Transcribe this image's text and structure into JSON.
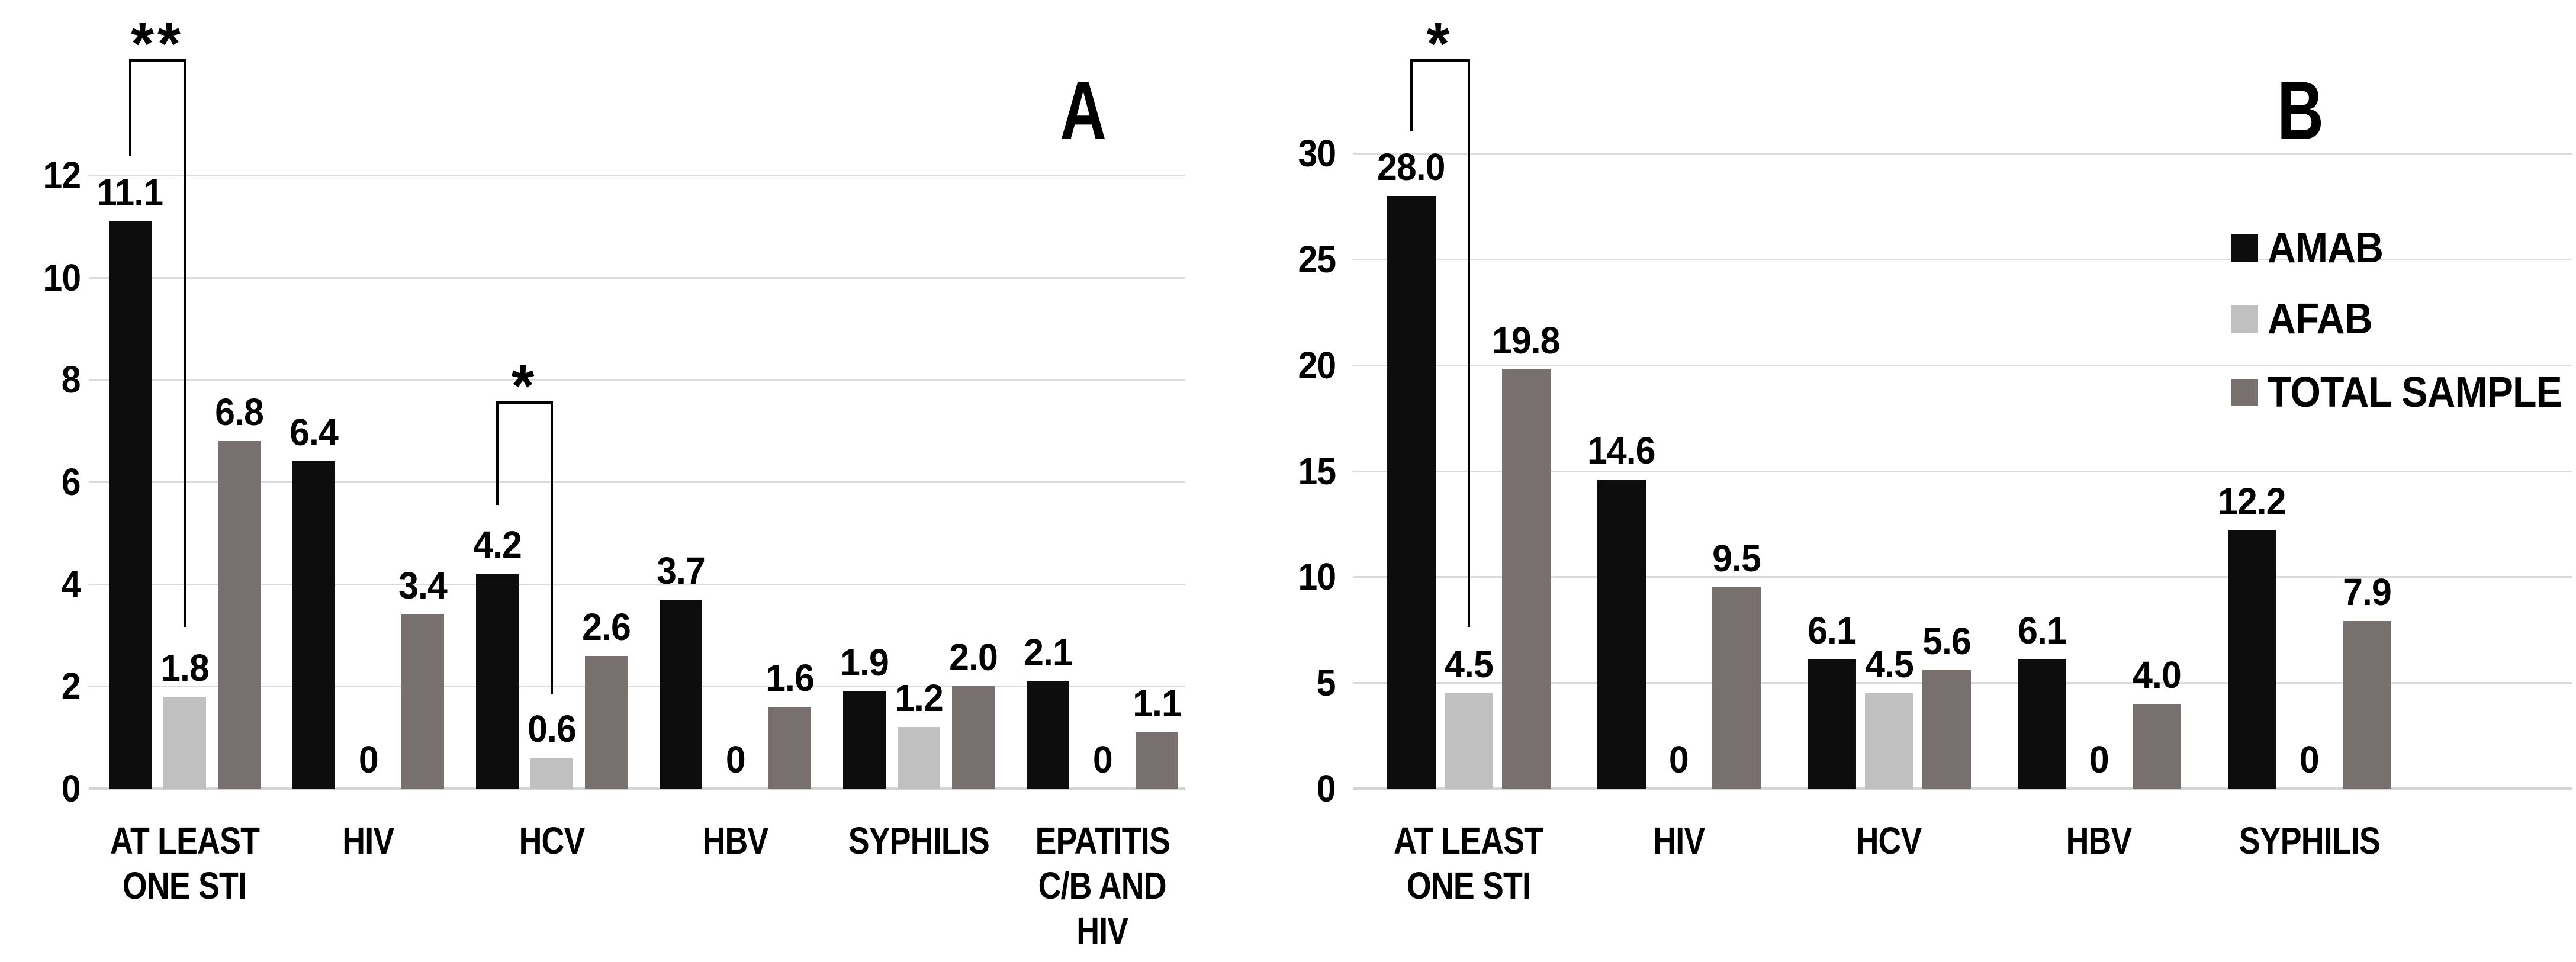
{
  "figure": {
    "background_color": "#ffffff",
    "text_color": "#000000",
    "gridline_color": "#dcdcdc",
    "axis_line_color": "#d4d4d4"
  },
  "legend": {
    "position": "right-of-chart-B",
    "items": [
      {
        "label": "AMAB",
        "color": "#0d0d0d"
      },
      {
        "label": "AFAB",
        "color": "#c0c0c0"
      },
      {
        "label": "TOTAL SAMPLE",
        "color": "#77706f"
      }
    ]
  },
  "chart_data": [
    {
      "id": "A",
      "panel_label": "A",
      "type": "bar",
      "title": "",
      "xlabel": "",
      "ylabel": "",
      "ylim": [
        0,
        12
      ],
      "yticks": [
        0,
        2,
        4,
        6,
        8,
        10,
        12
      ],
      "grid": true,
      "categories": [
        "AT LEAST ONE STI",
        "HIV",
        "HCV",
        "HBV",
        "SYPHILIS",
        "EPATITIS C/B AND HIV"
      ],
      "category_lines": [
        [
          "AT LEAST",
          "ONE STI"
        ],
        [
          "HIV"
        ],
        [
          "HCV"
        ],
        [
          "HBV"
        ],
        [
          "SYPHILIS"
        ],
        [
          "EPATITIS",
          "C/B AND",
          "HIV"
        ]
      ],
      "series": [
        {
          "name": "AMAB",
          "color": "#0d0d0d",
          "values": [
            11.1,
            6.4,
            4.2,
            3.7,
            1.9,
            2.1
          ],
          "labels": [
            "11.1",
            "6.4",
            "4.2",
            "3.7",
            "1.9",
            "2.1"
          ]
        },
        {
          "name": "AFAB",
          "color": "#c0c0c0",
          "values": [
            1.8,
            0,
            0.6,
            0,
            1.2,
            0
          ],
          "labels": [
            "1.8",
            "0",
            "0.6",
            "0",
            "1.2",
            "0"
          ]
        },
        {
          "name": "TOTAL SAMPLE",
          "color": "#77706f",
          "values": [
            6.8,
            3.4,
            2.6,
            1.6,
            2.0,
            1.1
          ],
          "labels": [
            "6.8",
            "3.4",
            "2.6",
            "1.6",
            "2.0",
            "1.1"
          ]
        }
      ],
      "annotations": [
        {
          "text": "**",
          "category": "AT LEAST ONE STI",
          "category_index": 0,
          "from_series": 0,
          "to_series": 1,
          "top_y": 100,
          "leg_end_y": [
            264,
            1059
          ]
        },
        {
          "text": "*",
          "category": "HCV",
          "category_index": 2,
          "from_series": 0,
          "to_series": 1,
          "top_y": 678,
          "leg_end_y": [
            853,
            1173
          ]
        }
      ]
    },
    {
      "id": "B",
      "panel_label": "B",
      "type": "bar",
      "title": "",
      "xlabel": "",
      "ylabel": "",
      "ylim": [
        0,
        30
      ],
      "yticks": [
        0,
        5,
        10,
        15,
        20,
        25,
        30
      ],
      "grid": true,
      "categories": [
        "AT LEAST ONE STI",
        "HIV",
        "HCV",
        "HBV",
        "SYPHILIS"
      ],
      "category_lines": [
        [
          "AT LEAST",
          "ONE STI"
        ],
        [
          "HIV"
        ],
        [
          "HCV"
        ],
        [
          "HBV"
        ],
        [
          "SYPHILIS"
        ]
      ],
      "series": [
        {
          "name": "AMAB",
          "color": "#0d0d0d",
          "values": [
            28.0,
            14.6,
            6.1,
            6.1,
            12.2
          ],
          "labels": [
            "28.0",
            "14.6",
            "6.1",
            "6.1",
            "12.2"
          ]
        },
        {
          "name": "AFAB",
          "color": "#c0c0c0",
          "values": [
            4.5,
            0,
            4.5,
            0,
            0
          ],
          "labels": [
            "4.5",
            "0",
            "4.5",
            "0",
            "0"
          ]
        },
        {
          "name": "TOTAL SAMPLE",
          "color": "#77706f",
          "values": [
            19.8,
            9.5,
            5.6,
            4.0,
            7.9
          ],
          "labels": [
            "19.8",
            "9.5",
            "5.6",
            "4.0",
            "7.9"
          ]
        }
      ],
      "annotations": [
        {
          "text": "*",
          "category": "AT LEAST ONE STI",
          "category_index": 0,
          "from_series": 0,
          "to_series": 1,
          "top_y": 100,
          "leg_end_y": [
            222,
            1059
          ]
        }
      ]
    }
  ]
}
